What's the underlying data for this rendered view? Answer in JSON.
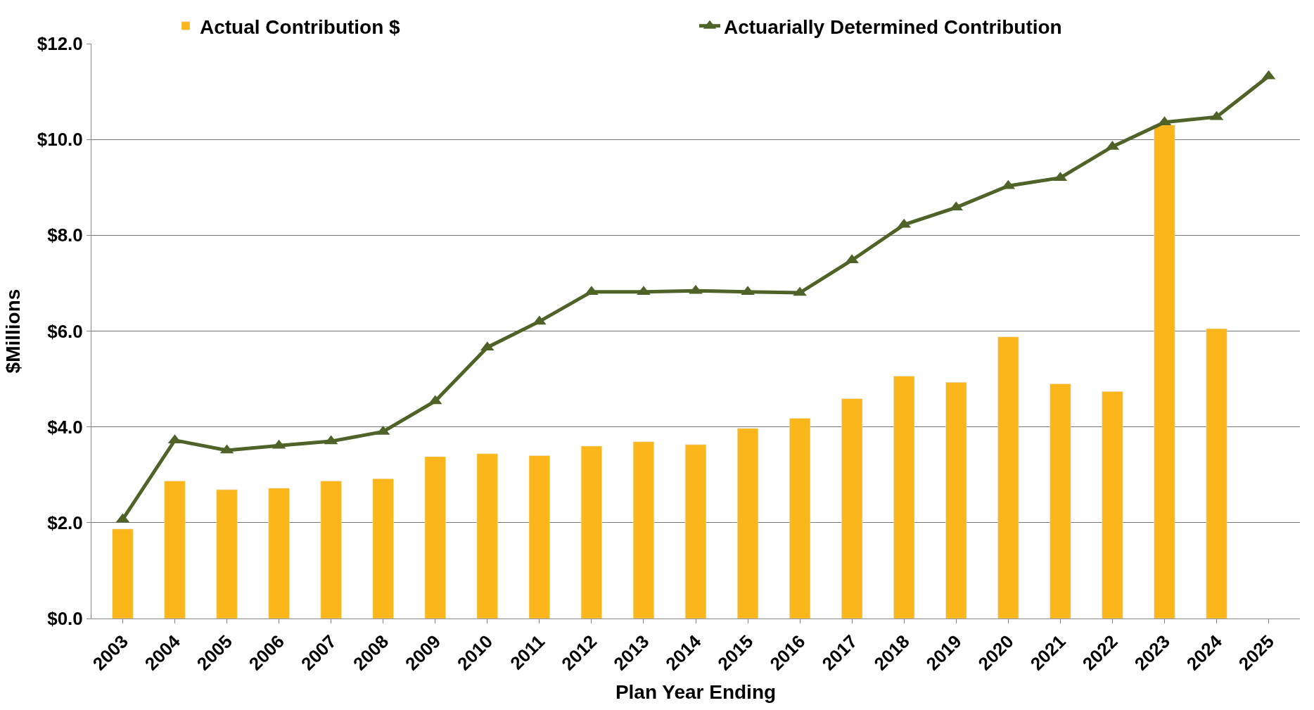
{
  "chart_data": {
    "type": "bar",
    "xlabel": "Plan Year Ending",
    "ylabel": "$Millions",
    "categories": [
      "2003",
      "2004",
      "2005",
      "2006",
      "2007",
      "2008",
      "2009",
      "2010",
      "2011",
      "2012",
      "2013",
      "2014",
      "2015",
      "2016",
      "2017",
      "2018",
      "2019",
      "2020",
      "2021",
      "2022",
      "2023",
      "2024",
      "2025"
    ],
    "series": [
      {
        "name": "Actual Contribution $",
        "color": "#fbb61b",
        "values": [
          1.87,
          2.87,
          2.69,
          2.72,
          2.87,
          2.92,
          3.38,
          3.44,
          3.4,
          3.6,
          3.69,
          3.63,
          3.97,
          4.18,
          4.59,
          5.06,
          4.93,
          5.88,
          4.9,
          4.74,
          10.3,
          6.05,
          null
        ]
      },
      {
        "name": "Actuarially Determined Contribution",
        "type": "line",
        "color": "#4f6228",
        "marker": "triangle",
        "values": [
          2.07,
          3.72,
          3.51,
          3.61,
          3.7,
          3.9,
          4.54,
          5.66,
          6.2,
          6.82,
          6.82,
          6.84,
          6.82,
          6.8,
          7.48,
          8.22,
          8.58,
          9.03,
          9.2,
          9.85,
          10.36,
          10.47,
          11.32
        ]
      }
    ],
    "ylim": [
      0,
      12
    ],
    "yticks": [
      {
        "value": 0,
        "label": "$0.0"
      },
      {
        "value": 2,
        "label": "$2.0"
      },
      {
        "value": 4,
        "label": "$4.0"
      },
      {
        "value": 6,
        "label": "$6.0"
      },
      {
        "value": 8,
        "label": "$8.0"
      },
      {
        "value": 10,
        "label": "$10.0"
      },
      {
        "value": 12,
        "label": "$12.0"
      }
    ],
    "grid": "y",
    "legend": "top"
  }
}
